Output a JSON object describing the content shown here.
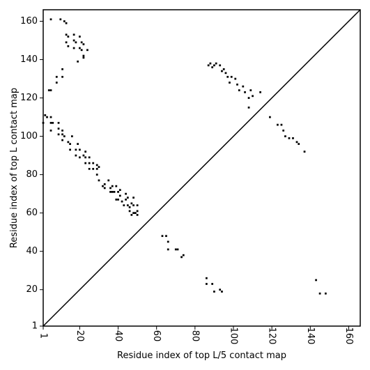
{
  "chart_data": {
    "type": "scatter",
    "title": "",
    "xlabel": "Residue index of top L/5 contact map",
    "ylabel": "Residue index of top L contact map",
    "xlim": [
      1,
      166
    ],
    "ylim": [
      1,
      166
    ],
    "xticks": [
      1,
      20,
      40,
      60,
      80,
      100,
      120,
      140,
      160
    ],
    "yticks": [
      1,
      20,
      40,
      60,
      80,
      100,
      120,
      140,
      160
    ],
    "grid": false,
    "legend": "none",
    "marker_color": "#000000",
    "diagonal": true,
    "upper_triangle_points": [
      [
        87,
        137
      ],
      [
        88,
        138
      ],
      [
        89,
        136
      ],
      [
        90,
        137
      ],
      [
        91,
        138
      ],
      [
        93,
        137
      ],
      [
        94,
        134
      ],
      [
        95,
        135
      ],
      [
        96,
        133
      ],
      [
        97,
        131
      ],
      [
        99,
        131
      ],
      [
        98,
        128
      ],
      [
        101,
        130
      ],
      [
        102,
        127
      ],
      [
        103,
        124
      ],
      [
        105,
        126
      ],
      [
        106,
        123
      ],
      [
        109,
        124
      ],
      [
        108,
        120
      ],
      [
        110,
        121
      ],
      [
        114,
        123
      ],
      [
        108,
        115
      ],
      [
        119,
        110
      ],
      [
        123,
        106
      ],
      [
        125,
        106
      ],
      [
        126,
        103
      ],
      [
        127,
        100
      ],
      [
        129,
        99
      ],
      [
        131,
        99
      ],
      [
        133,
        97
      ],
      [
        134,
        96
      ],
      [
        137,
        92
      ],
      [
        143,
        25
      ],
      [
        145,
        18
      ],
      [
        148,
        18
      ],
      [
        86,
        26
      ],
      [
        86,
        23
      ],
      [
        89,
        23
      ],
      [
        90,
        19
      ],
      [
        93,
        20
      ],
      [
        94,
        19
      ],
      [
        63,
        48
      ],
      [
        65,
        48
      ],
      [
        66,
        45
      ],
      [
        66,
        41
      ],
      [
        70,
        41
      ],
      [
        71,
        41
      ],
      [
        73,
        37
      ],
      [
        74,
        38
      ]
    ],
    "lower_triangle_points": [
      [
        5,
        161
      ],
      [
        10,
        161
      ],
      [
        12,
        160
      ],
      [
        13,
        159
      ],
      [
        13,
        153
      ],
      [
        14,
        152
      ],
      [
        17,
        153
      ],
      [
        17,
        150
      ],
      [
        13,
        149
      ],
      [
        14,
        147
      ],
      [
        18,
        149
      ],
      [
        20,
        152
      ],
      [
        21,
        149
      ],
      [
        22,
        148
      ],
      [
        20,
        146
      ],
      [
        17,
        146
      ],
      [
        21,
        145
      ],
      [
        24,
        145
      ],
      [
        22,
        142
      ],
      [
        22,
        141
      ],
      [
        19,
        139
      ],
      [
        4,
        124
      ],
      [
        5,
        124
      ],
      [
        8,
        131
      ],
      [
        11,
        131
      ],
      [
        11,
        135
      ],
      [
        8,
        128
      ],
      [
        2,
        111
      ],
      [
        3,
        110
      ],
      [
        1,
        107
      ],
      [
        5,
        107
      ],
      [
        6,
        107
      ],
      [
        5,
        110
      ],
      [
        9,
        107
      ],
      [
        9,
        104
      ],
      [
        11,
        103
      ],
      [
        5,
        103
      ],
      [
        9,
        101
      ],
      [
        11,
        101
      ],
      [
        11,
        98
      ],
      [
        12,
        100
      ],
      [
        14,
        97
      ],
      [
        15,
        96
      ],
      [
        16,
        100
      ],
      [
        15,
        93
      ],
      [
        19,
        96
      ],
      [
        18,
        93
      ],
      [
        20,
        93
      ],
      [
        18,
        90
      ],
      [
        20,
        89
      ],
      [
        22,
        90
      ],
      [
        23,
        92
      ],
      [
        23,
        89
      ],
      [
        25,
        89
      ],
      [
        23,
        86
      ],
      [
        25,
        86
      ],
      [
        27,
        86
      ],
      [
        25,
        83
      ],
      [
        27,
        83
      ],
      [
        29,
        83
      ],
      [
        29,
        85
      ],
      [
        30,
        84
      ],
      [
        29,
        80
      ],
      [
        30,
        77
      ],
      [
        32,
        74
      ],
      [
        33,
        75
      ],
      [
        35,
        77
      ],
      [
        37,
        74
      ],
      [
        36,
        73
      ],
      [
        36,
        71
      ],
      [
        38,
        71
      ],
      [
        39,
        74
      ],
      [
        40,
        71
      ],
      [
        41,
        72
      ],
      [
        41,
        69
      ],
      [
        40,
        67
      ],
      [
        42,
        66
      ],
      [
        44,
        67
      ],
      [
        44,
        70
      ],
      [
        45,
        68
      ],
      [
        43,
        64
      ],
      [
        45,
        64
      ],
      [
        46,
        63
      ],
      [
        48,
        64
      ],
      [
        48,
        60
      ],
      [
        50,
        64
      ],
      [
        50,
        61
      ],
      [
        50,
        59
      ],
      [
        47,
        59
      ],
      [
        48,
        68
      ],
      [
        47,
        65
      ],
      [
        33,
        73
      ],
      [
        37,
        71
      ],
      [
        39,
        67
      ],
      [
        46,
        61
      ],
      [
        49,
        60
      ]
    ]
  }
}
